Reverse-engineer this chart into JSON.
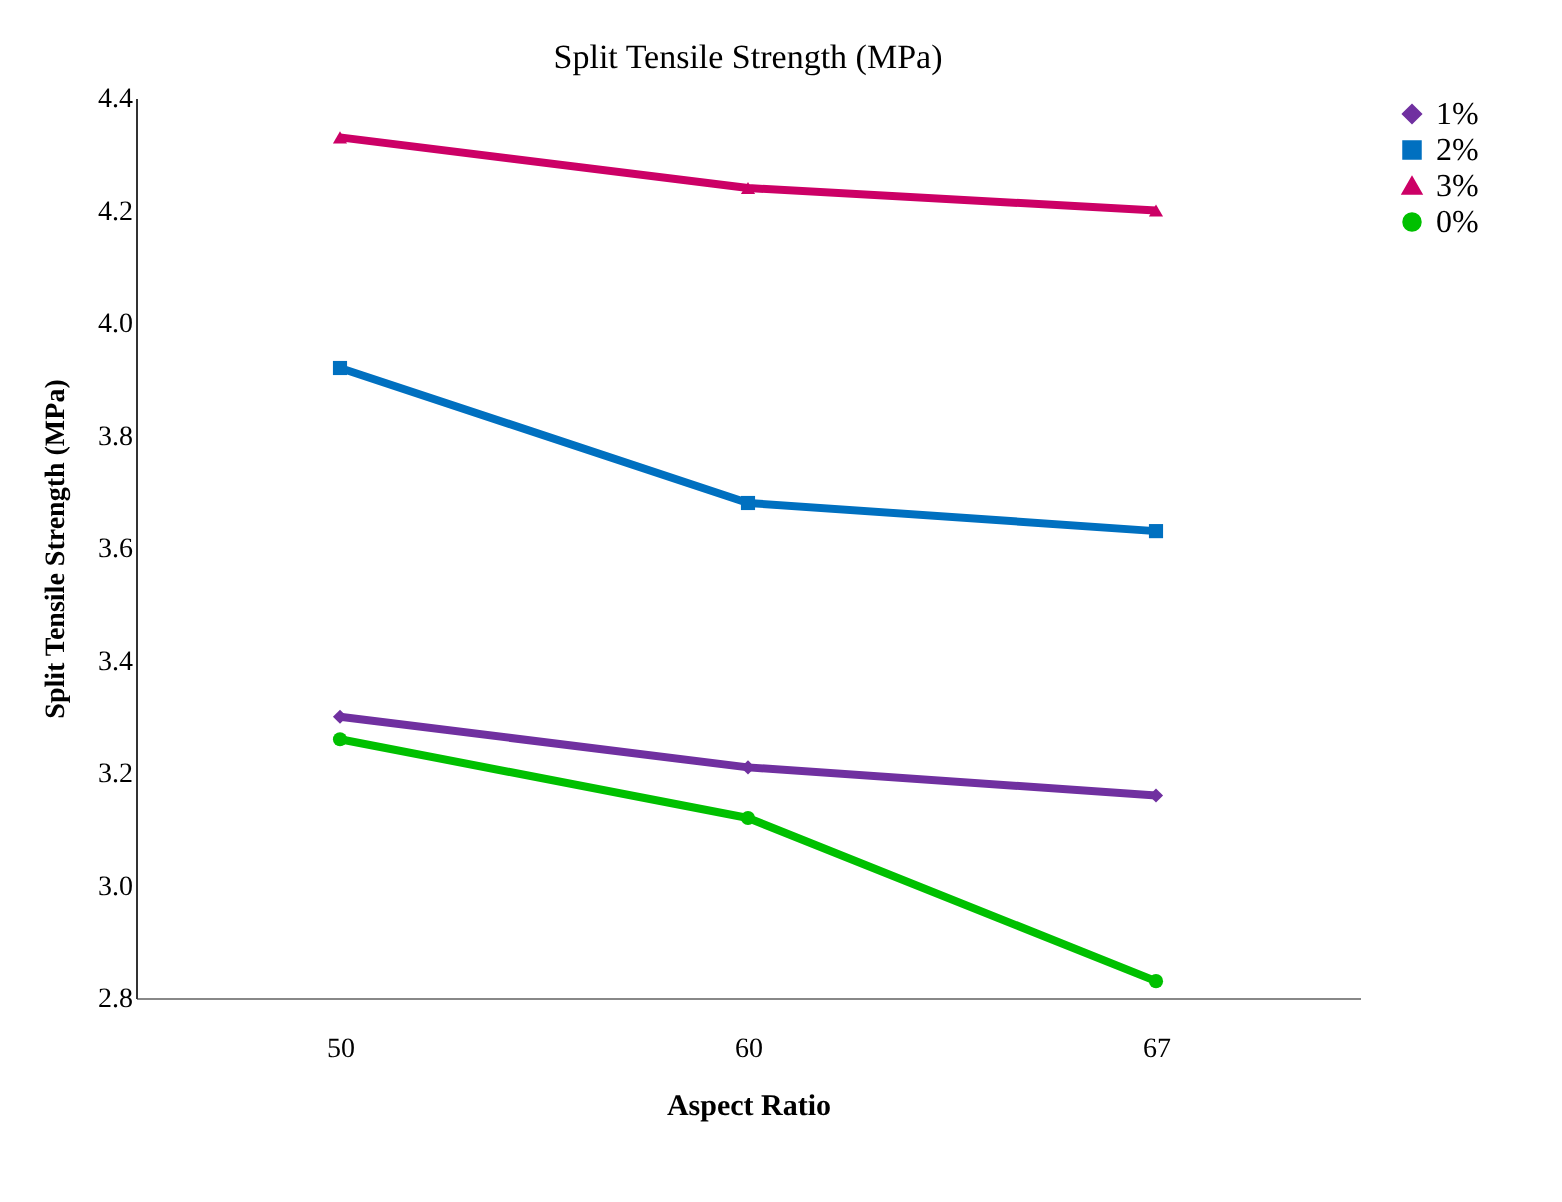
{
  "chart_data": {
    "type": "line",
    "title": "Split Tensile Strength (MPa)",
    "xlabel": "Aspect Ratio",
    "ylabel": "Split Tensile  Strength (MPa)",
    "categories": [
      "50",
      "60",
      "67"
    ],
    "series": [
      {
        "name": "1%",
        "color": "#7030a0",
        "values": [
          3.3,
          3.21,
          3.16
        ],
        "marker": "diamond"
      },
      {
        "name": "2%",
        "color": "#0070c0",
        "values": [
          3.92,
          3.68,
          3.63
        ],
        "marker": "square"
      },
      {
        "name": "3%",
        "color": "#cc0066",
        "values": [
          4.33,
          4.24,
          4.2
        ],
        "marker": "triangle"
      },
      {
        "name": "0%",
        "color": "#00c000",
        "values": [
          3.26,
          3.12,
          2.83
        ],
        "marker": "circle"
      }
    ],
    "ylim": [
      2.8,
      4.4
    ],
    "yticks": [
      {
        "value": 2.8,
        "label": "2.8"
      },
      {
        "value": 3.0,
        "label": "3.0"
      },
      {
        "value": 3.2,
        "label": "3.2"
      },
      {
        "value": 3.4,
        "label": "3.4"
      },
      {
        "value": 3.6,
        "label": "3.6"
      },
      {
        "value": 3.8,
        "label": "3.8"
      },
      {
        "value": 4.0,
        "label": "4.0"
      },
      {
        "value": 4.2,
        "label": "4.2"
      },
      {
        "value": 4.4,
        "label": "4.4"
      }
    ],
    "grid": false,
    "legend": "right",
    "line_style": "solid"
  }
}
